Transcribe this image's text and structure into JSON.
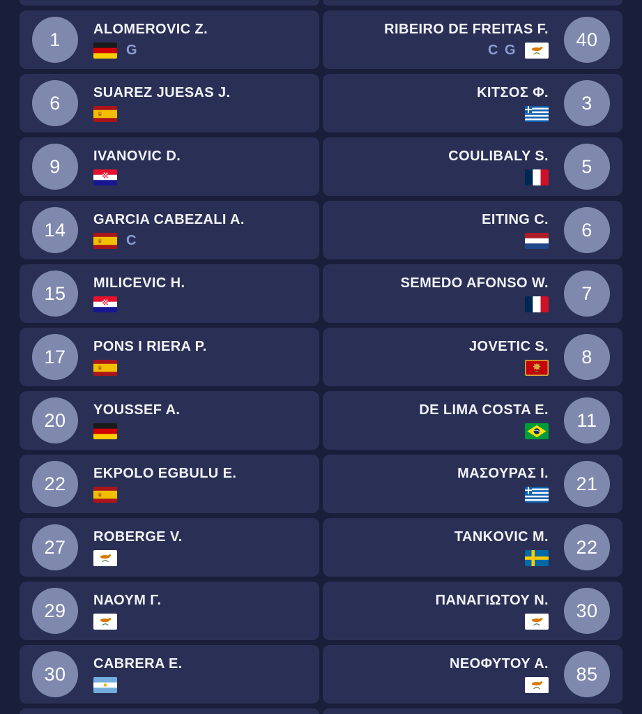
{
  "view": "match-lineups",
  "colors": {
    "page_bg": "#191E3A",
    "card_bg": "#2A3055",
    "circle_bg": "#7F89AE",
    "name_color": "#F2F3F7",
    "badge_color": "#8C9CD4",
    "number_color": "#FFFFFF"
  },
  "badge_legend": {
    "G": "goalkeeper-badge",
    "C": "captain-badge"
  },
  "teams": {
    "home": {
      "side": "left",
      "players": [
        {
          "number": "1",
          "name": "ALOMEROVIC Z.",
          "flag": {
            "code": "de",
            "name": "germany-flag"
          },
          "badges": [
            "G"
          ]
        },
        {
          "number": "6",
          "name": "SUAREZ JUESAS J.",
          "flag": {
            "code": "es",
            "name": "spain-flag"
          },
          "badges": []
        },
        {
          "number": "9",
          "name": "IVANOVIC D.",
          "flag": {
            "code": "hr",
            "name": "croatia-flag"
          },
          "badges": []
        },
        {
          "number": "14",
          "name": "GARCIA CABEZALI A.",
          "flag": {
            "code": "es",
            "name": "spain-flag"
          },
          "badges": [
            "C"
          ]
        },
        {
          "number": "15",
          "name": "MILICEVIC H.",
          "flag": {
            "code": "hr",
            "name": "croatia-flag"
          },
          "badges": []
        },
        {
          "number": "17",
          "name": "PONS I RIERA P.",
          "flag": {
            "code": "es",
            "name": "spain-flag"
          },
          "badges": []
        },
        {
          "number": "20",
          "name": "YOUSSEF A.",
          "flag": {
            "code": "de",
            "name": "germany-flag"
          },
          "badges": []
        },
        {
          "number": "22",
          "name": "EKPOLO EGBULU E.",
          "flag": {
            "code": "es",
            "name": "spain-flag"
          },
          "badges": []
        },
        {
          "number": "27",
          "name": "ROBERGE V.",
          "flag": {
            "code": "cy",
            "name": "cyprus-flag"
          },
          "badges": []
        },
        {
          "number": "29",
          "name": "ΝΑΟΥΜ Γ.",
          "flag": {
            "code": "cy",
            "name": "cyprus-flag"
          },
          "badges": []
        },
        {
          "number": "30",
          "name": "CABRERA E.",
          "flag": {
            "code": "ar",
            "name": "argentina-flag"
          },
          "badges": []
        }
      ]
    },
    "away": {
      "side": "right",
      "players": [
        {
          "number": "40",
          "name": "RIBEIRO DE FREITAS F.",
          "flag": {
            "code": "cy",
            "name": "cyprus-flag"
          },
          "badges": [
            "C",
            "G"
          ]
        },
        {
          "number": "3",
          "name": "ΚΙΤΣΟΣ Φ.",
          "flag": {
            "code": "gr",
            "name": "greece-flag"
          },
          "badges": []
        },
        {
          "number": "5",
          "name": "COULIBALY S.",
          "flag": {
            "code": "fr",
            "name": "france-flag"
          },
          "badges": []
        },
        {
          "number": "6",
          "name": "EITING C.",
          "flag": {
            "code": "nl",
            "name": "netherlands-flag"
          },
          "badges": []
        },
        {
          "number": "7",
          "name": "SEMEDO AFONSO W.",
          "flag": {
            "code": "fr",
            "name": "france-flag"
          },
          "badges": []
        },
        {
          "number": "8",
          "name": "JOVETIC S.",
          "flag": {
            "code": "me",
            "name": "montenegro-flag"
          },
          "badges": []
        },
        {
          "number": "11",
          "name": "DE LIMA COSTA E.",
          "flag": {
            "code": "br",
            "name": "brazil-flag"
          },
          "badges": []
        },
        {
          "number": "21",
          "name": "ΜΑΣΟΥΡΑΣ Ι.",
          "flag": {
            "code": "gr",
            "name": "greece-flag"
          },
          "badges": []
        },
        {
          "number": "22",
          "name": "TANKOVIC M.",
          "flag": {
            "code": "se",
            "name": "sweden-flag"
          },
          "badges": []
        },
        {
          "number": "30",
          "name": "ΠΑΝΑΓΙΩΤΟΥ Ν.",
          "flag": {
            "code": "cy",
            "name": "cyprus-flag"
          },
          "badges": []
        },
        {
          "number": "85",
          "name": "ΝΕΟΦΥΤΟΥ Α.",
          "flag": {
            "code": "cy",
            "name": "cyprus-flag"
          },
          "badges": []
        }
      ]
    }
  }
}
